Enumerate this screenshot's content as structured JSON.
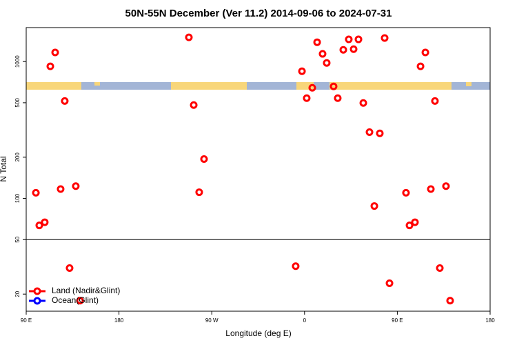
{
  "chart_data": {
    "type": "scatter",
    "title": "50N-55N December (Ver 11.2)   2014-09-06 to 2024-07-31",
    "x_label": "Longitude (deg E)",
    "y_label": "N Total",
    "log_y": true,
    "xlim": [
      90,
      540
    ],
    "ylim": [
      15,
      1770
    ],
    "xticks": [
      {
        "value": 90,
        "label": "90 E"
      },
      {
        "value": 180,
        "label": "180"
      },
      {
        "value": 270,
        "label": "90 W"
      },
      {
        "value": 360,
        "label": "0"
      },
      {
        "value": 450,
        "label": "90 E"
      },
      {
        "value": 540,
        "label": "180"
      }
    ],
    "yticks": [
      20,
      50,
      100,
      200,
      500,
      1000
    ],
    "reference_line": 50,
    "legend_position": "lower left",
    "series": [
      {
        "name": "Land (Nadir&Glint)",
        "color": "#ff0000",
        "x": [
          99.4,
          102.7,
          108,
          113.4,
          118.1,
          123.4,
          127.4,
          132.1,
          138.1,
          142.2,
          247.8,
          252.5,
          257.8,
          262.5,
          351.4,
          357.5,
          362.1,
          367.5,
          372.2,
          377.5,
          381.5,
          388.2,
          392.2,
          397.6,
          402.9,
          407.6,
          412.3,
          417,
          423,
          427.7,
          433,
          437.7,
          442.4,
          458.4,
          461.8,
          467.1,
          472.5,
          477.2,
          482.5,
          486.5,
          491.2,
          497.2,
          501.2
        ],
        "values": [
          110,
          63.5,
          67,
          923,
          1165,
          117,
          515,
          31,
          123,
          17.9,
          1503,
          481,
          111,
          194,
          32,
          849,
          540,
          643,
          1384,
          1138,
          977,
          658,
          540,
          1218,
          1452,
          1232,
          1452,
          498,
          305,
          88,
          299,
          1486,
          24,
          110,
          63.5,
          67,
          923,
          1165,
          117,
          515,
          31,
          123,
          17.9
        ]
      },
      {
        "name": "Ocean(Glint)",
        "color": "#0000ff",
        "x": [],
        "values": []
      }
    ]
  }
}
